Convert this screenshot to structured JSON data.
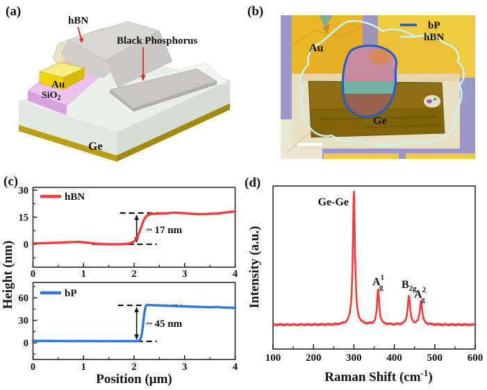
{
  "figure": {
    "panel_labels": {
      "a": "(a)",
      "b": "(b)",
      "c": "(c)",
      "d": "(d)"
    }
  },
  "panel_a": {
    "labels": {
      "hbn": "hBN",
      "black_phosphorus": "Black Phosphorus",
      "au": "Au",
      "sio2_base": "SiO",
      "sio2_sub": "2",
      "ge": "Ge"
    },
    "colors": {
      "substrate_top": "#e9efe9",
      "substrate_front": "#e2e9e2",
      "substrate_side": "#d5ded5",
      "gold_front": "#bb9e11",
      "gold_side": "#a5890c",
      "sio2_top": "#eec2ee",
      "sio2_front": "#d9a2de",
      "au_top": "#f8ec86",
      "au_front": "#f4d303",
      "au_side": "#d9ba02",
      "bp_top": "#d8d7d3",
      "bp_fold": "#c9c8c4",
      "bp_slab": "#c7c6c2",
      "hbn_tint": "rgba(213,204,152,0.55)",
      "ledge": "#f2f6f2",
      "arrow": "#d92b2b"
    }
  },
  "panel_b": {
    "labels": {
      "au": "Au",
      "ge": "Ge"
    },
    "legend": [
      {
        "label": "bP",
        "color": "#1f5fc2"
      },
      {
        "label": "hBN",
        "color": "#c9f6ec"
      }
    ],
    "colors": {
      "street": "#9b98c9",
      "pad": "#f0ca40",
      "pad_covered": "#e9b62a",
      "ge_strip": "#e9dfc4",
      "corner_pale": "#ece7d2",
      "flake": "#8b6d12",
      "flake_dark": "#7d6008",
      "bp_pink": "#c78ba0",
      "bp_teal": "#74b3a4",
      "bp_brown": "#96624d",
      "scalebar": "#ffffff"
    }
  },
  "chart_data": [
    {
      "id": "hbn_height_profile",
      "type": "line",
      "series": "hBN",
      "color": "#f23b3b",
      "xlim": [
        0,
        4
      ],
      "ylim": [
        -12.7,
        31.5
      ],
      "xticks": [
        "0",
        "1",
        "2",
        "3",
        "4"
      ],
      "yticks": [
        "0",
        "15",
        "30"
      ],
      "ylabel": "Height (nm)",
      "annotation": "~ 17 nm",
      "step_height_nm": 17,
      "step_position_um": 2.1,
      "dashes": {
        "low": {
          "y": 0,
          "x1": 1.17,
          "x2": 2.45
        },
        "high": {
          "y": 17.3,
          "x1": 1.72,
          "x2": 3.05
        }
      },
      "arrow_x": 2.05,
      "points": [
        [
          0,
          0.5
        ],
        [
          0.2,
          0.6
        ],
        [
          0.4,
          0.8
        ],
        [
          0.6,
          1.0
        ],
        [
          0.8,
          1.25
        ],
        [
          0.95,
          1.2
        ],
        [
          1.1,
          0.8
        ],
        [
          1.25,
          0.35
        ],
        [
          1.4,
          0.1
        ],
        [
          1.55,
          0.0
        ],
        [
          1.7,
          0.05
        ],
        [
          1.85,
          0.25
        ],
        [
          1.95,
          0.9
        ],
        [
          2.02,
          2.2
        ],
        [
          2.08,
          5.0
        ],
        [
          2.14,
          9.5
        ],
        [
          2.2,
          13.8
        ],
        [
          2.27,
          16.0
        ],
        [
          2.35,
          16.8
        ],
        [
          2.5,
          17.0
        ],
        [
          2.65,
          17.2
        ],
        [
          2.78,
          17.5
        ],
        [
          2.9,
          17.4
        ],
        [
          3.05,
          17.1
        ],
        [
          3.2,
          16.8
        ],
        [
          3.35,
          16.7
        ],
        [
          3.5,
          16.9
        ],
        [
          3.65,
          17.1
        ],
        [
          3.8,
          17.6
        ],
        [
          3.95,
          18.1
        ],
        [
          4,
          18.2
        ]
      ]
    },
    {
      "id": "bp_height_profile",
      "type": "line",
      "series": "bP",
      "color": "#2e78d2",
      "xlim": [
        0,
        4
      ],
      "ylim": [
        -22,
        80.5
      ],
      "xticks": [
        "0",
        "1",
        "2",
        "3",
        "4"
      ],
      "yticks": [
        "0",
        "30",
        "60"
      ],
      "xlabel": "Position (μm)",
      "annotation": "~ 45 nm",
      "step_height_nm": 45,
      "step_position_um": 2.15,
      "dashes": {
        "low": {
          "y": 2,
          "x1": 1.17,
          "x2": 2.45
        },
        "high": {
          "y": 50,
          "x1": 1.68,
          "x2": 2.95
        }
      },
      "arrow_x": 2.05,
      "points": [
        [
          0,
          2.7
        ],
        [
          0.15,
          2.5
        ],
        [
          0.3,
          2.6
        ],
        [
          0.45,
          2.4
        ],
        [
          0.6,
          2.5
        ],
        [
          0.75,
          2.3
        ],
        [
          0.9,
          2.4
        ],
        [
          1.05,
          2.3
        ],
        [
          1.2,
          2.4
        ],
        [
          1.35,
          2.2
        ],
        [
          1.5,
          2.3
        ],
        [
          1.65,
          2.2
        ],
        [
          1.8,
          2.3
        ],
        [
          1.95,
          2.2
        ],
        [
          2.05,
          2.3
        ],
        [
          2.1,
          3.0
        ],
        [
          2.14,
          8.0
        ],
        [
          2.17,
          20.0
        ],
        [
          2.2,
          38.0
        ],
        [
          2.23,
          48.5
        ],
        [
          2.26,
          50.6
        ],
        [
          2.32,
          50.3
        ],
        [
          2.45,
          50.0
        ],
        [
          2.6,
          49.6
        ],
        [
          2.75,
          49.2
        ],
        [
          2.9,
          48.8
        ],
        [
          3.05,
          48.5
        ],
        [
          3.2,
          48.1
        ],
        [
          3.35,
          47.8
        ],
        [
          3.5,
          47.5
        ],
        [
          3.65,
          47.8
        ],
        [
          3.75,
          47.2
        ],
        [
          3.85,
          47.0
        ],
        [
          4,
          46.6
        ]
      ]
    },
    {
      "id": "raman_spectrum",
      "type": "line",
      "color": "#f23b3b",
      "xlim": [
        100,
        600
      ],
      "xticks": [
        "100",
        "200",
        "300",
        "400",
        "500",
        "600"
      ],
      "xlabel": {
        "pre": "Raman Shift (cm",
        "sup": "-1",
        "post": ")"
      },
      "ylabel": "Intensity (a.u.)",
      "baseline": 0.025,
      "peaks": [
        {
          "center": 300,
          "height": 0.95,
          "hwhm": 3.2,
          "label": {
            "base": "Ge-Ge",
            "sup": "",
            "sub": ""
          }
        },
        {
          "center": 360,
          "height": 0.25,
          "hwhm": 3.2,
          "label": {
            "base": "A",
            "sup": "1",
            "sub": "g"
          }
        },
        {
          "center": 436,
          "height": 0.2,
          "hwhm": 3.6,
          "label": {
            "base": "B",
            "sup": "",
            "sub": "2g"
          }
        },
        {
          "center": 466,
          "height": 0.165,
          "hwhm": 3.6,
          "label": {
            "base": "A",
            "sup": "2",
            "sub": "g"
          }
        }
      ]
    }
  ]
}
